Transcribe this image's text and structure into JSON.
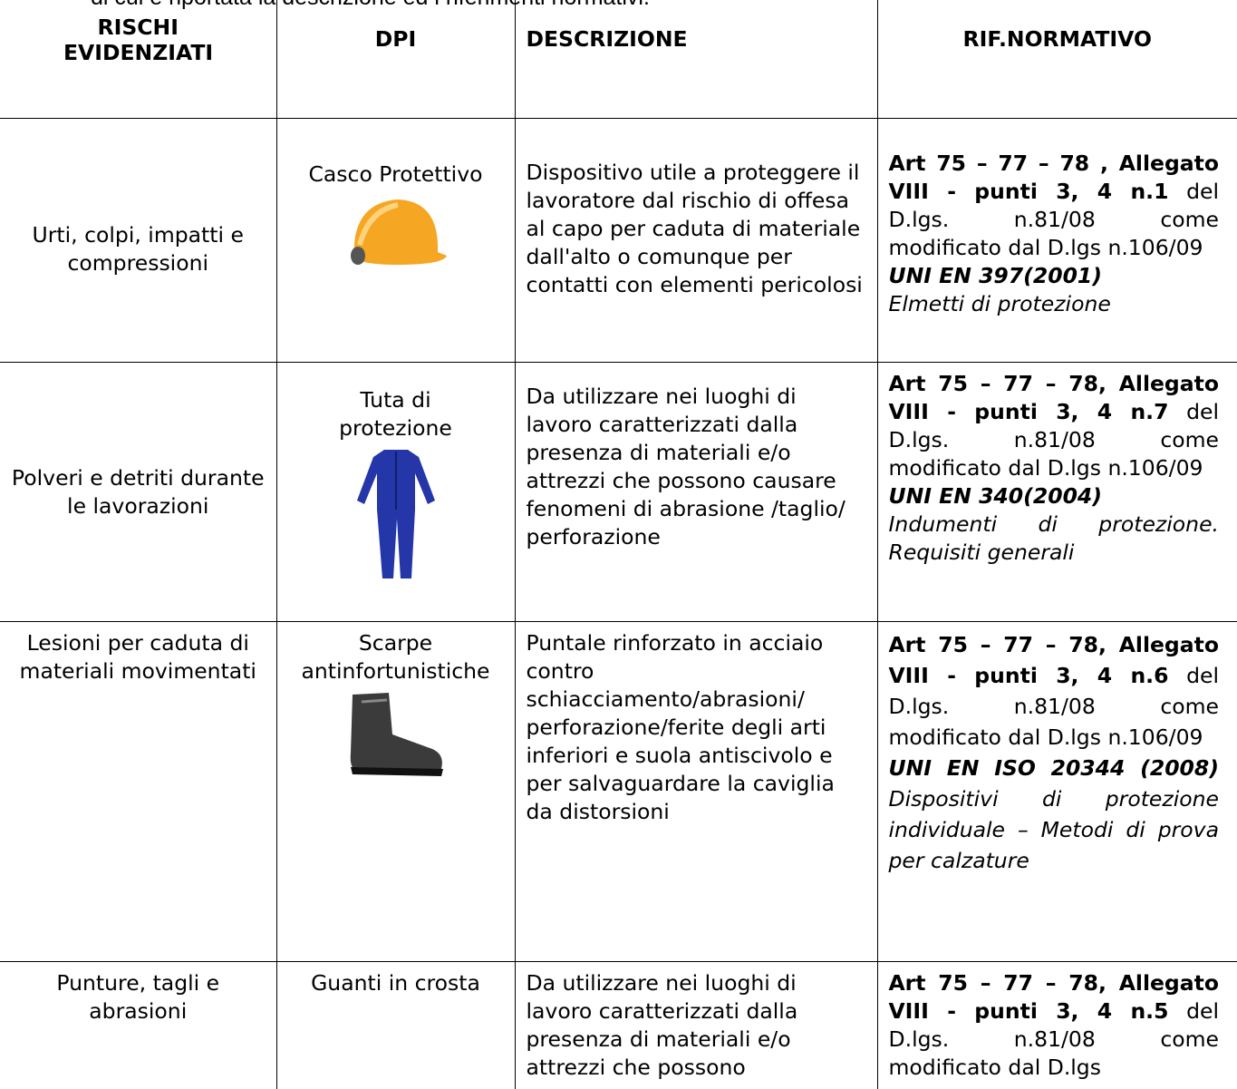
{
  "intro": "di cui è riportata la descrizione ed i riferimenti normativi.",
  "table": {
    "headers": [
      "RISCHI EVIDENZIATI",
      "DPI",
      "DESCRIZIONE",
      "RIF.NORMATIVO"
    ],
    "rows": [
      {
        "rischio": "Urti, colpi, impatti e compressioni",
        "dpi": "Casco Protettivo",
        "descrizione": "Dispositivo utile a proteggere il lavoratore dal rischio di offesa al capo per caduta di materiale dall'alto o comunque per contatti con elementi pericolosi",
        "riferimento": {
          "articolo": "Art 75 – 77 – 78 , Allegato VIII - punti 3, 4 n.1",
          "decreto": "del D.lgs. n.81/08 come modificato dal D.lgs n.106/09",
          "norma": "UNI EN 397(2001)",
          "titolo_norma": "Elmetti di protezione"
        }
      },
      {
        "rischio": "Polveri e detriti durante le lavorazioni",
        "dpi": "Tuta di protezione",
        "descrizione": "Da utilizzare nei luoghi di lavoro caratterizzati dalla presenza di materiali e/o attrezzi che possono causare fenomeni di abrasione /taglio/ perforazione",
        "riferimento": {
          "articolo": "Art 75 – 77 – 78, Allegato VIII - punti 3, 4 n.7",
          "decreto": "del D.lgs. n.81/08 come modificato dal D.lgs n.106/09",
          "norma": "UNI EN 340(2004)",
          "titolo_norma": "Indumenti di protezione. Requisiti generali"
        }
      },
      {
        "rischio": "Lesioni per caduta di materiali movimentati",
        "dpi": "Scarpe antinfortunistiche",
        "descrizione": "Puntale rinforzato in acciaio contro schiacciamento/abrasioni/ perforazione/ferite degli arti inferiori e suola antiscivolo e per salvaguardare la caviglia da distorsioni",
        "riferimento": {
          "articolo": "Art 75 – 77 – 78, Allegato VIII - punti 3, 4 n.6",
          "decreto": "del D.lgs. n.81/08 come modificato dal D.lgs n.106/09",
          "norma": "UNI EN ISO 20344 (2008)",
          "titolo_norma": "Dispositivi di protezione individuale – Metodi di prova per calzature"
        }
      },
      {
        "rischio": "Punture, tagli e abrasioni",
        "dpi": "Guanti in crosta",
        "descrizione": "Da utilizzare nei luoghi di lavoro caratterizzati dalla presenza di materiali e/o attrezzi che possono",
        "riferimento": {
          "articolo": "Art 75 – 77 – 78, Allegato VIII - punti 3, 4 n.5",
          "decreto": "del D.lgs. n.81/08 come modificato dal D.lgs"
        }
      }
    ]
  }
}
